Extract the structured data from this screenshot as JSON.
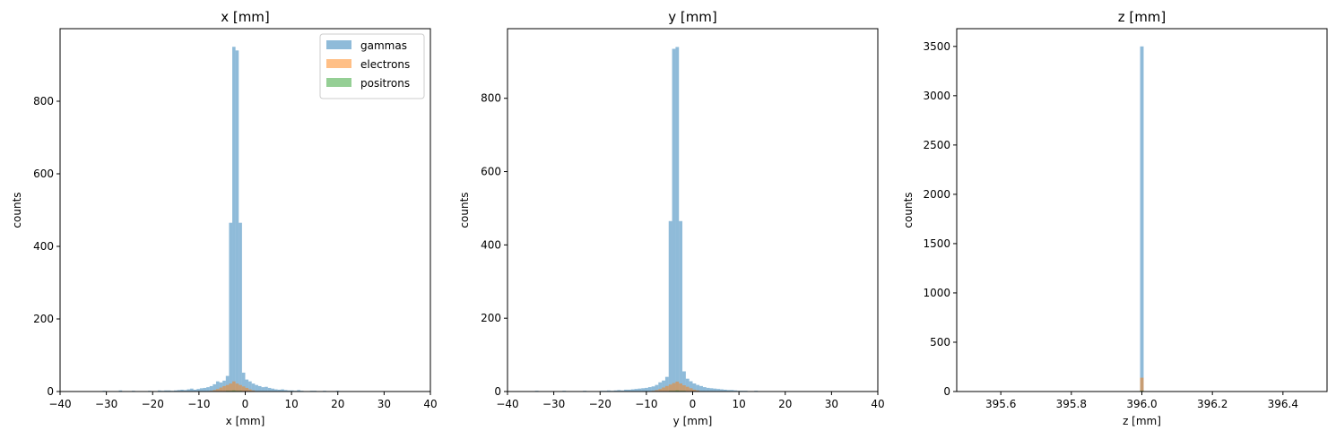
{
  "colors": {
    "gammas": "#1f77b4",
    "electrons": "#ff7f0e",
    "positrons": "#2ca02c"
  },
  "chart_data": [
    {
      "type": "bar",
      "title": "x [mm]",
      "xlabel": "x [mm]",
      "ylabel": "counts",
      "xlim": [
        -40,
        40
      ],
      "ylim": [
        0,
        1000
      ],
      "xticks": [
        "−40",
        "−30",
        "−20",
        "−10",
        "0",
        "10",
        "20",
        "30",
        "40"
      ],
      "yticks": [
        "0",
        "200",
        "400",
        "600",
        "800"
      ],
      "legend": {
        "placement": "top-right",
        "entries": [
          "gammas",
          "electrons",
          "positrons"
        ]
      },
      "bin_start": -35,
      "bin_width": 0.7,
      "series": [
        {
          "name": "gammas",
          "alpha": 0.5,
          "values": [
            0,
            0,
            1,
            1,
            0,
            0,
            2,
            1,
            0,
            1,
            0,
            3,
            0,
            0,
            1,
            2,
            0,
            1,
            0,
            1,
            2,
            1,
            0,
            3,
            2,
            3,
            3,
            2,
            3,
            4,
            5,
            4,
            6,
            8,
            5,
            7,
            9,
            10,
            12,
            15,
            20,
            28,
            25,
            30,
            43,
            465,
            950,
            940,
            465,
            52,
            33,
            28,
            22,
            18,
            15,
            12,
            13,
            10,
            8,
            6,
            5,
            6,
            4,
            3,
            3,
            2,
            4,
            2,
            1,
            1,
            2,
            2,
            1,
            0,
            2,
            1,
            1,
            0,
            2,
            1,
            0,
            1,
            1,
            0,
            1,
            1,
            0,
            1,
            0,
            1,
            0,
            1,
            0,
            1,
            0,
            0,
            0,
            0,
            0,
            0
          ]
        },
        {
          "name": "electrons",
          "alpha": 0.5,
          "values": [
            0,
            0,
            0,
            0,
            0,
            0,
            0,
            0,
            0,
            0,
            0,
            0,
            0,
            0,
            0,
            0,
            0,
            0,
            0,
            0,
            0,
            0,
            0,
            0,
            0,
            0,
            0,
            0,
            0,
            0,
            0,
            0,
            0,
            0,
            0,
            0,
            0,
            0,
            1,
            2,
            4,
            7,
            11,
            15,
            18,
            22,
            28,
            22,
            18,
            14,
            10,
            6,
            3,
            1,
            0,
            0,
            0,
            0,
            0,
            0,
            0,
            0,
            0,
            0,
            0,
            0,
            0,
            0,
            0,
            0,
            0,
            0,
            0,
            0,
            0,
            0,
            0,
            0,
            0,
            0,
            0,
            0,
            0,
            0,
            0,
            0,
            0,
            0,
            0,
            0,
            0,
            0,
            0,
            0,
            0,
            0,
            0,
            0,
            0,
            0
          ]
        },
        {
          "name": "positrons",
          "alpha": 0.5,
          "values": [
            0,
            0,
            0,
            0,
            0,
            0,
            0,
            0,
            0,
            0,
            0,
            0,
            0,
            0,
            0,
            0,
            0,
            0,
            0,
            0,
            0,
            0,
            0,
            0,
            0,
            0,
            0,
            0,
            0,
            0,
            0,
            0,
            0,
            0,
            0,
            0,
            0,
            0,
            0,
            0,
            0,
            0,
            1,
            1,
            2,
            2,
            3,
            2,
            2,
            1,
            1,
            0,
            0,
            0,
            0,
            0,
            0,
            0,
            0,
            0,
            0,
            0,
            0,
            0,
            0,
            0,
            0,
            0,
            0,
            0,
            0,
            0,
            0,
            0,
            0,
            0,
            0,
            0,
            0,
            0,
            0,
            0,
            0,
            0,
            0,
            0,
            0,
            0,
            0,
            0,
            0,
            0,
            0,
            0,
            0,
            0,
            0,
            0,
            0,
            0
          ]
        }
      ]
    },
    {
      "type": "bar",
      "title": "y [mm]",
      "xlabel": "y [mm]",
      "ylabel": "counts",
      "xlim": [
        -40,
        40
      ],
      "ylim": [
        0,
        990
      ],
      "xticks": [
        "−40",
        "−30",
        "−20",
        "−10",
        "0",
        "10",
        "20",
        "30",
        "40"
      ],
      "yticks": [
        "0",
        "200",
        "400",
        "600",
        "800"
      ],
      "bin_start": -37,
      "bin_width": 0.74,
      "series": [
        {
          "name": "gammas",
          "alpha": 0.5,
          "values": [
            0,
            1,
            0,
            1,
            2,
            0,
            1,
            0,
            0,
            1,
            0,
            1,
            2,
            0,
            0,
            1,
            0,
            1,
            2,
            1,
            0,
            1,
            0,
            2,
            2,
            3,
            2,
            3,
            4,
            3,
            5,
            5,
            6,
            7,
            8,
            9,
            10,
            12,
            14,
            18,
            25,
            30,
            40,
            465,
            935,
            940,
            465,
            55,
            35,
            28,
            22,
            18,
            15,
            12,
            10,
            9,
            8,
            7,
            6,
            5,
            4,
            4,
            3,
            2,
            2,
            2,
            1,
            1,
            2,
            1,
            0,
            1,
            1,
            0,
            1,
            0,
            1,
            0,
            1,
            0,
            0,
            1,
            0,
            0,
            0,
            0,
            0,
            0,
            0,
            0,
            0,
            0,
            0,
            0,
            0,
            0,
            0,
            0,
            0,
            0
          ]
        },
        {
          "name": "electrons",
          "alpha": 0.5,
          "values": [
            0,
            0,
            0,
            0,
            0,
            0,
            0,
            0,
            0,
            0,
            0,
            0,
            0,
            0,
            0,
            0,
            0,
            0,
            0,
            0,
            0,
            0,
            0,
            0,
            0,
            0,
            0,
            0,
            0,
            0,
            0,
            0,
            0,
            0,
            0,
            0,
            0,
            1,
            2,
            4,
            7,
            11,
            15,
            19,
            23,
            27,
            22,
            17,
            13,
            9,
            5,
            3,
            1,
            0,
            0,
            0,
            0,
            0,
            0,
            0,
            0,
            0,
            0,
            0,
            0,
            0,
            0,
            0,
            0,
            0,
            0,
            0,
            0,
            0,
            0,
            0,
            0,
            0,
            0,
            0,
            0,
            0,
            0,
            0,
            0,
            0,
            0,
            0,
            0,
            0,
            0,
            0,
            0,
            0,
            0,
            0,
            0,
            0,
            0,
            0
          ]
        },
        {
          "name": "positrons",
          "alpha": 0.5,
          "values": [
            0,
            0,
            0,
            0,
            0,
            0,
            0,
            0,
            0,
            0,
            0,
            0,
            0,
            0,
            0,
            0,
            0,
            0,
            0,
            0,
            0,
            0,
            0,
            0,
            0,
            0,
            0,
            0,
            0,
            0,
            0,
            0,
            0,
            0,
            0,
            0,
            0,
            0,
            0,
            0,
            0,
            1,
            1,
            2,
            2,
            3,
            2,
            2,
            1,
            1,
            0,
            0,
            0,
            0,
            0,
            0,
            0,
            0,
            0,
            0,
            0,
            0,
            0,
            0,
            0,
            0,
            0,
            0,
            0,
            0,
            0,
            0,
            0,
            0,
            0,
            0,
            0,
            0,
            0,
            0,
            0,
            0,
            0,
            0,
            0,
            0,
            0,
            0,
            0,
            0,
            0,
            0,
            0,
            0,
            0,
            0,
            0,
            0,
            0,
            0
          ]
        }
      ]
    },
    {
      "type": "bar",
      "title": "z [mm]",
      "xlabel": "z [mm]",
      "ylabel": "counts",
      "xlim": [
        395.475,
        396.525
      ],
      "ylim": [
        0,
        3680
      ],
      "xticks": [
        "395.6",
        "395.8",
        "396.0",
        "396.2",
        "396.4"
      ],
      "xtick_values": [
        395.6,
        395.8,
        396.0,
        396.2,
        396.4
      ],
      "yticks": [
        "0",
        "500",
        "1000",
        "1500",
        "2000",
        "2500",
        "3000",
        "3500"
      ],
      "bars": [
        {
          "name": "gammas",
          "alpha": 0.5,
          "x0": 395.995,
          "x1": 396.005,
          "value": 3500
        },
        {
          "name": "electrons",
          "alpha": 0.5,
          "x0": 395.995,
          "x1": 396.005,
          "value": 140
        },
        {
          "name": "positrons",
          "alpha": 0.5,
          "x0": 395.995,
          "x1": 396.005,
          "value": 8
        }
      ]
    }
  ]
}
